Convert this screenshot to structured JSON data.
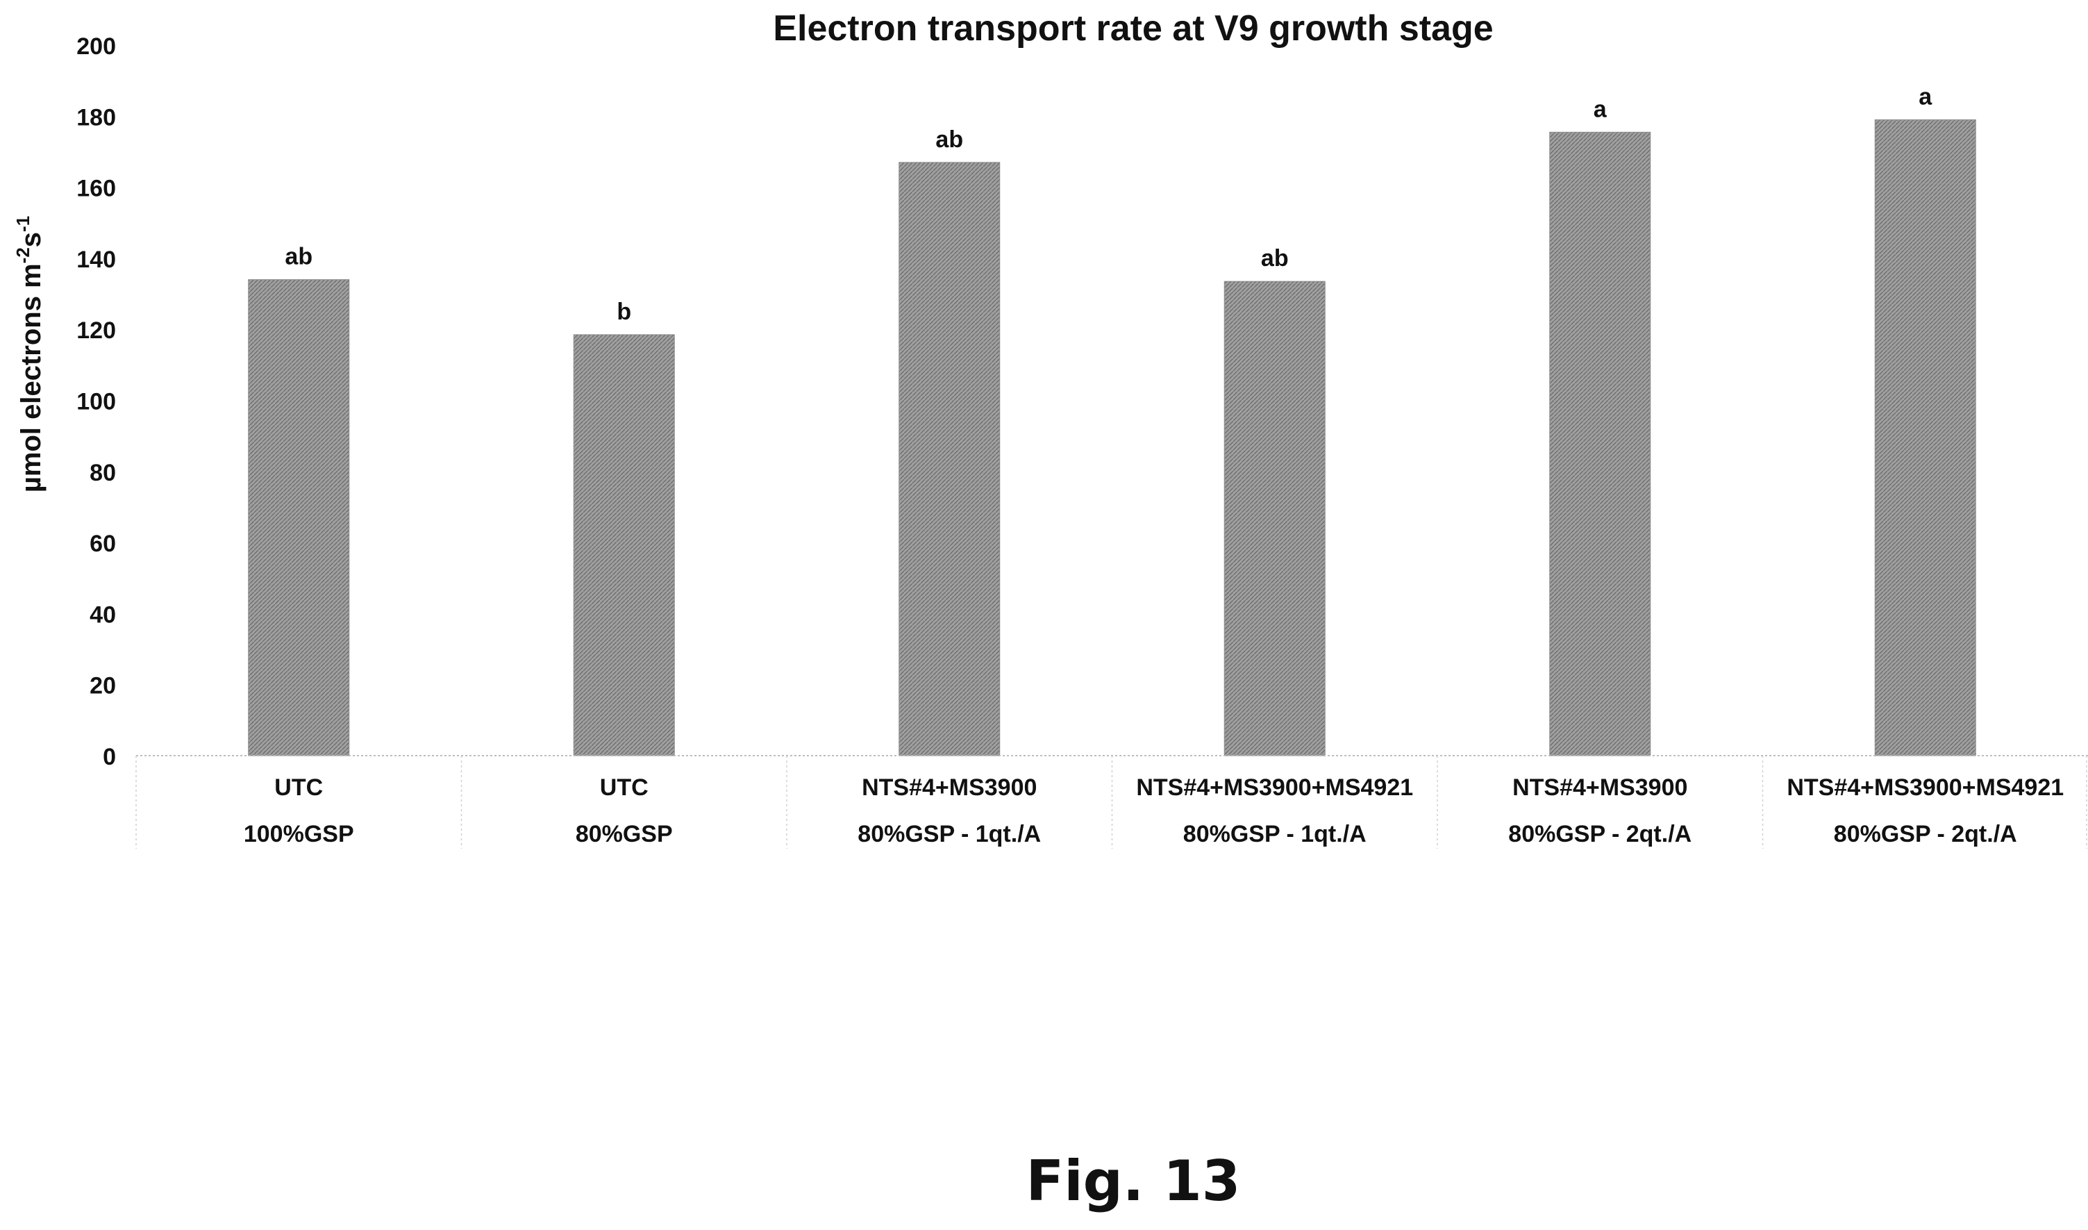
{
  "chart_data": {
    "type": "bar",
    "title": "Electron transport rate at V9 growth stage",
    "ylabel_parts": {
      "main": "µmol electrons m",
      "sup1": "-2",
      "mid": "s",
      "sup2": "-1"
    },
    "ylim": [
      0,
      200
    ],
    "y_ticks": [
      0,
      20,
      40,
      60,
      80,
      100,
      120,
      140,
      160,
      180,
      200
    ],
    "grid": false,
    "legend": "none",
    "categories": [
      {
        "line1": "UTC",
        "line2": "100%GSP"
      },
      {
        "line1": "UTC",
        "line2": "80%GSP"
      },
      {
        "line1": "NTS#4+MS3900",
        "line2": "80%GSP - 1qt./A"
      },
      {
        "line1": "NTS#4+MS3900+MS4921",
        "line2": "80%GSP - 1qt./A"
      },
      {
        "line1": "NTS#4+MS3900",
        "line2": "80%GSP - 2qt./A"
      },
      {
        "line1": "NTS#4+MS3900+MS4921",
        "line2": "80%GSP - 2qt./A"
      }
    ],
    "values": [
      134,
      118.5,
      167,
      133.5,
      175.5,
      179
    ],
    "significance_labels": [
      "ab",
      "b",
      "ab",
      "ab",
      "a",
      "a"
    ],
    "bar_color": "#9a9a9a"
  },
  "figure_caption": "Fig. 13"
}
